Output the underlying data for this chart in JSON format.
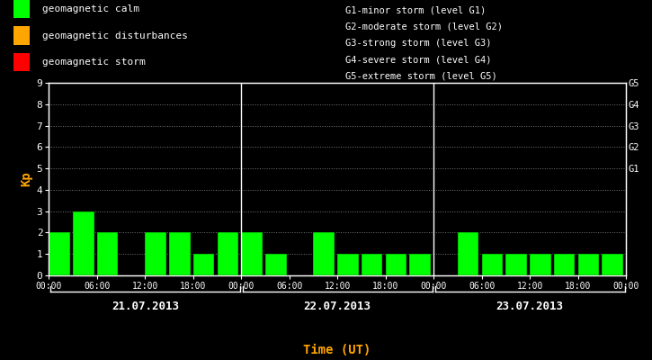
{
  "bg": "#000000",
  "bar_color": "#00ff00",
  "text_color": "#ffffff",
  "orange_color": "#ffa500",
  "grid_color": "#777777",
  "kp_day1": [
    2,
    3,
    2,
    0,
    2,
    2,
    1,
    2
  ],
  "kp_day2": [
    2,
    1,
    0,
    2,
    1,
    1,
    1,
    1
  ],
  "kp_day3": [
    0,
    2,
    1,
    1,
    1,
    1,
    1,
    1
  ],
  "days": [
    "21.07.2013",
    "22.07.2013",
    "23.07.2013"
  ],
  "ylim_max": 9,
  "yticks": [
    0,
    1,
    2,
    3,
    4,
    5,
    6,
    7,
    8,
    9
  ],
  "right_ticks": [
    5,
    6,
    7,
    8,
    9
  ],
  "right_labels": [
    "G1",
    "G2",
    "G3",
    "G4",
    "G5"
  ],
  "xtick_labels": [
    "00:00",
    "06:00",
    "12:00",
    "18:00",
    "00:00",
    "06:00",
    "12:00",
    "18:00",
    "00:00",
    "06:00",
    "12:00",
    "18:00",
    "00:00"
  ],
  "legend_left": [
    [
      "#00ff00",
      "geomagnetic calm"
    ],
    [
      "#ffa500",
      "geomagnetic disturbances"
    ],
    [
      "#ff0000",
      "geomagnetic storm"
    ]
  ],
  "legend_right": [
    "G1-minor storm (level G1)",
    "G2-moderate storm (level G2)",
    "G3-strong storm (level G3)",
    "G4-severe storm (level G4)",
    "G5-extreme storm (level G5)"
  ],
  "xlabel": "Time (UT)",
  "ylabel": "Kp",
  "bar_width": 0.88
}
